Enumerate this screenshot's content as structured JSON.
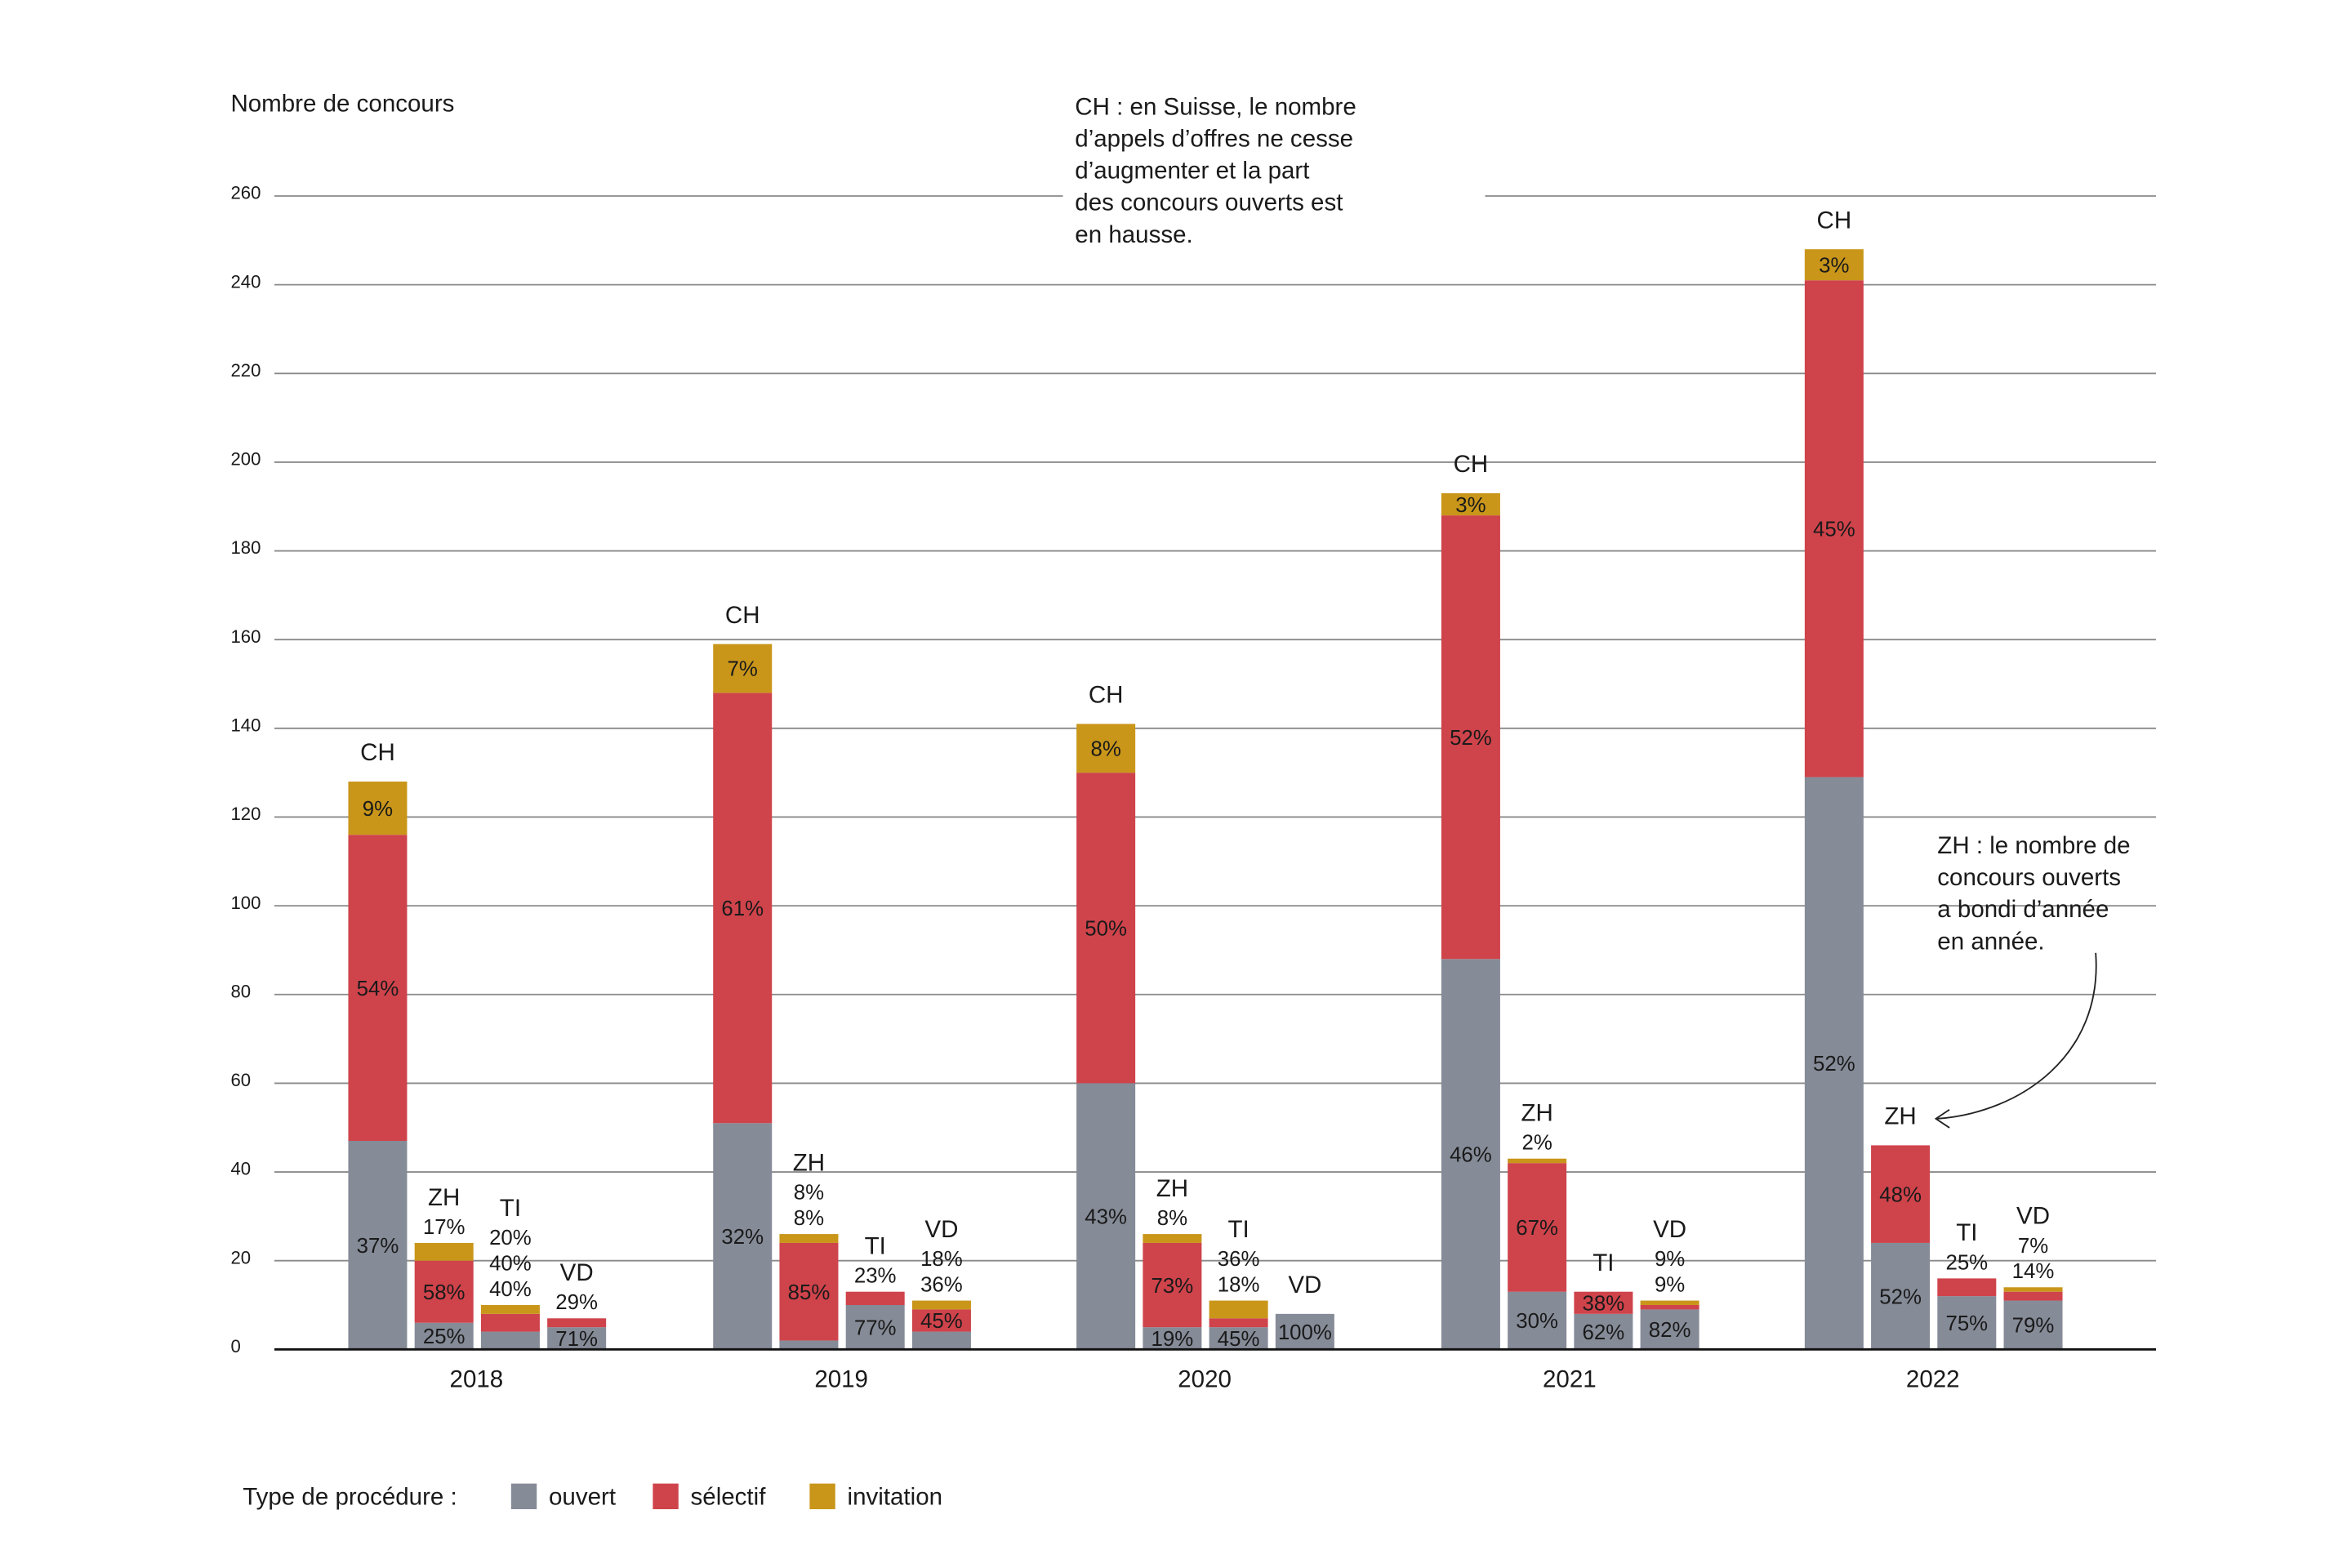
{
  "chart_data": {
    "type": "bar",
    "stacked": true,
    "ylabel": "Nombre de concours",
    "ylim": [
      0,
      260
    ],
    "yticks": [
      0,
      20,
      40,
      60,
      80,
      100,
      120,
      140,
      160,
      180,
      200,
      220,
      240,
      260
    ],
    "grid": true,
    "categories": [
      "2018",
      "2019",
      "2020",
      "2021",
      "2022"
    ],
    "regions": [
      "CH",
      "ZH",
      "TI",
      "VD"
    ],
    "series": [
      {
        "name": "ouvert",
        "color": "#858b97"
      },
      {
        "name": "sélectif",
        "color": "#cf434b"
      },
      {
        "name": "invitation",
        "color": "#c9961a"
      }
    ],
    "groups": [
      {
        "year": "2018",
        "bars": [
          {
            "region": "CH",
            "values": [
              47,
              69,
              12
            ],
            "labels": [
              "37%",
              "54%",
              "9%"
            ]
          },
          {
            "region": "ZH",
            "values": [
              6,
              14,
              4
            ],
            "labels": [
              "25%",
              "58%",
              "17%"
            ]
          },
          {
            "region": "TI",
            "values": [
              4,
              4,
              2
            ],
            "labels": [
              "40%",
              "40%",
              "20%"
            ]
          },
          {
            "region": "VD",
            "values": [
              5,
              2,
              0
            ],
            "labels": [
              "71%",
              "29%",
              null
            ]
          }
        ]
      },
      {
        "year": "2019",
        "bars": [
          {
            "region": "CH",
            "values": [
              51,
              97,
              11
            ],
            "labels": [
              "32%",
              "61%",
              "7%"
            ]
          },
          {
            "region": "ZH",
            "values": [
              2,
              22,
              2
            ],
            "labels": [
              "8%",
              "85%",
              "8%"
            ]
          },
          {
            "region": "TI",
            "values": [
              10,
              3,
              0
            ],
            "labels": [
              "77%",
              "23%",
              null
            ]
          },
          {
            "region": "VD",
            "values": [
              4,
              5,
              2
            ],
            "labels": [
              "36%",
              "45%",
              "18%"
            ]
          }
        ]
      },
      {
        "year": "2020",
        "bars": [
          {
            "region": "CH",
            "values": [
              60,
              70,
              11
            ],
            "labels": [
              "43%",
              "50%",
              "8%"
            ]
          },
          {
            "region": "ZH",
            "values": [
              5,
              19,
              2
            ],
            "labels": [
              "19%",
              "73%",
              "8%"
            ]
          },
          {
            "region": "TI",
            "values": [
              5,
              2,
              4
            ],
            "labels": [
              "45%",
              "18%",
              "36%"
            ]
          },
          {
            "region": "VD",
            "values": [
              8,
              0,
              0
            ],
            "labels": [
              "100%",
              null,
              null
            ]
          }
        ]
      },
      {
        "year": "2021",
        "bars": [
          {
            "region": "CH",
            "values": [
              88,
              100,
              5
            ],
            "labels": [
              "46%",
              "52%",
              "3%"
            ]
          },
          {
            "region": "ZH",
            "values": [
              13,
              29,
              1
            ],
            "labels": [
              "30%",
              "67%",
              "2%"
            ]
          },
          {
            "region": "TI",
            "values": [
              8,
              5,
              0
            ],
            "labels": [
              "62%",
              "38%",
              null
            ]
          },
          {
            "region": "VD",
            "values": [
              9,
              1,
              1
            ],
            "labels": [
              "82%",
              "9%",
              "9%"
            ]
          }
        ]
      },
      {
        "year": "2022",
        "bars": [
          {
            "region": "CH",
            "values": [
              129,
              112,
              7
            ],
            "labels": [
              "52%",
              "45%",
              "3%"
            ]
          },
          {
            "region": "ZH",
            "values": [
              24,
              22,
              0
            ],
            "labels": [
              "52%",
              "48%",
              null
            ]
          },
          {
            "region": "TI",
            "values": [
              12,
              4,
              0
            ],
            "labels": [
              "75%",
              "25%",
              null
            ]
          },
          {
            "region": "VD",
            "values": [
              11,
              2,
              1
            ],
            "labels": [
              "79%",
              "14%",
              "7%"
            ]
          }
        ]
      }
    ],
    "annotations": {
      "ch": [
        "CH : en Suisse, le nombre",
        "d’appels d’offres ne cesse",
        "d’augmenter et la part",
        "des concours ouverts est",
        "en hausse."
      ],
      "zh": [
        "ZH : le nombre de",
        "concours ouverts",
        "a bondi d’année",
        "en année."
      ]
    },
    "legend": {
      "title": "Type de procédure :",
      "position": "bottom-left"
    }
  }
}
